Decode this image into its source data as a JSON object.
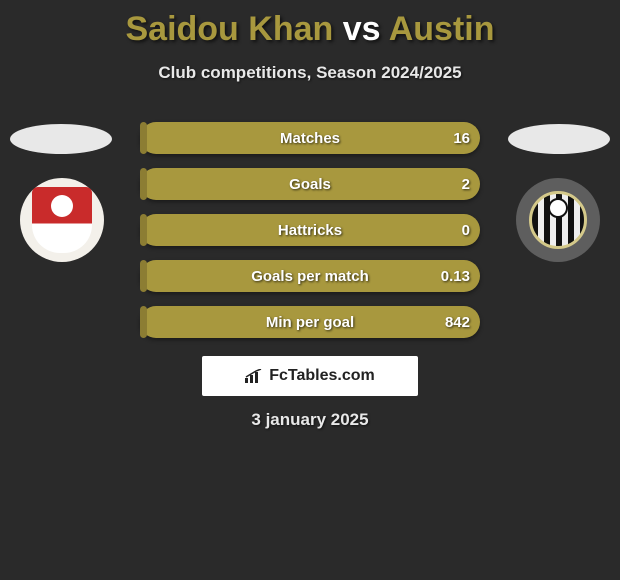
{
  "title": {
    "player1": "Saidou Khan",
    "vs": " vs ",
    "player2": "Austin",
    "color_player": "#a8983e",
    "color_vs": "#ffffff"
  },
  "subtitle": "Club competitions, Season 2024/2025",
  "background_color": "#2a2a2a",
  "bars": {
    "track_color": "#a8983e",
    "fill_color": "#8c7d33",
    "text_color": "#ffffff",
    "fill_from": "left",
    "rows": [
      {
        "label": "Matches",
        "left_val": "",
        "right_val": "16",
        "fill_pct": 2
      },
      {
        "label": "Goals",
        "left_val": "",
        "right_val": "2",
        "fill_pct": 2
      },
      {
        "label": "Hattricks",
        "left_val": "",
        "right_val": "0",
        "fill_pct": 2
      },
      {
        "label": "Goals per match",
        "left_val": "",
        "right_val": "0.13",
        "fill_pct": 2
      },
      {
        "label": "Min per goal",
        "left_val": "",
        "right_val": "842",
        "fill_pct": 2
      }
    ]
  },
  "branding": {
    "text": "FcTables.com"
  },
  "date": "3 january 2025",
  "crest_left_bg": "#f3f0ea",
  "crest_right_bg": "#5e5e5e"
}
